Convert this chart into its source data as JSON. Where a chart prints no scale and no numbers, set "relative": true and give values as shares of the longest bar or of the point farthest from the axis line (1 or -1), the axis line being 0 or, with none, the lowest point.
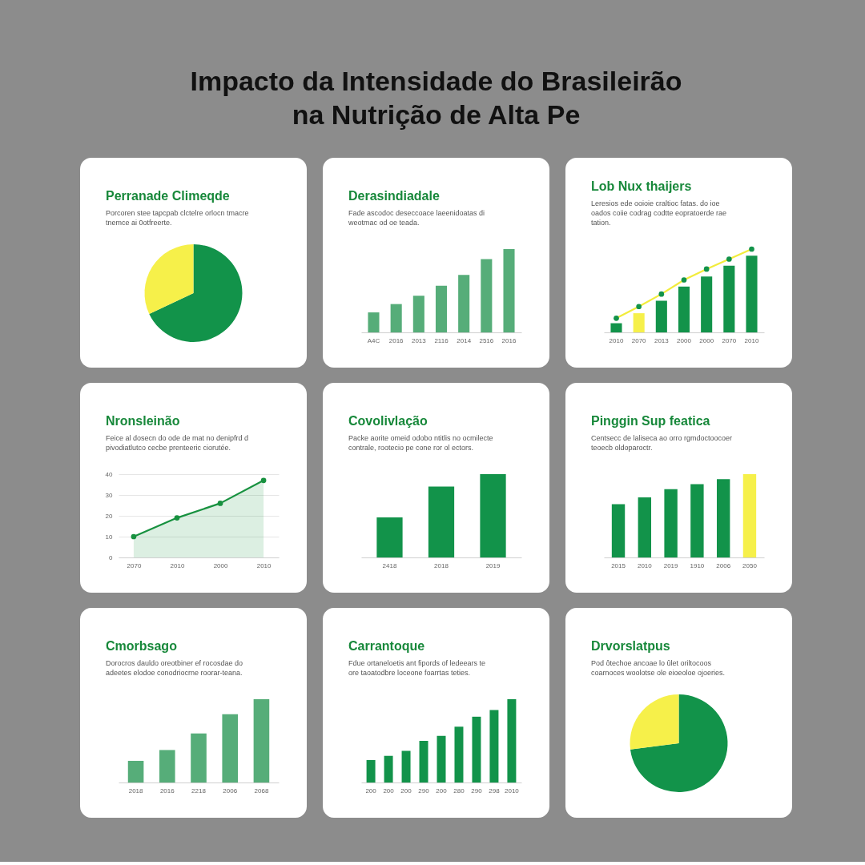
{
  "chart_data": [
    {
      "type": "other",
      "title": "Impacto da Intensidade do Brasileirão na Nutrição de Alta Pe"
    },
    {
      "type": "pie",
      "title": "Perranade Climeqde",
      "subtitle": "Porcoren stee tapcpab clctelre orlocn tmacre tnemce ai 0otfreerte.",
      "categories": [
        null,
        null
      ],
      "values": [
        68,
        32
      ],
      "colors": [
        "#12934a",
        "#f6f04a"
      ]
    },
    {
      "type": "bar",
      "title": "Derasindiadale",
      "subtitle": "Fade ascodoc deseccoace laeenidoatas di weotmac od oe teada.",
      "categories": [
        "A4C",
        "2016",
        "2013",
        "2116",
        "2014",
        "2516",
        "2016"
      ],
      "values": [
        0.24,
        0.34,
        0.44,
        0.56,
        0.69,
        0.88,
        1
      ],
      "color": "#56ad79",
      "relative": true
    },
    {
      "type": "bar",
      "title": "Lob Nux thaijers",
      "subtitle": "Leresios ede ooioie craltioc fatas. do ioe oados coiie codrag codtte eopratoerde rae tation.",
      "categories": [
        "2010",
        "2070",
        "2013",
        "2000",
        "2000",
        "2070",
        "2010"
      ],
      "series": [
        {
          "type": "bar",
          "values": [
            0.11,
            0.23,
            0.38,
            0.55,
            0.67,
            0.8,
            0.92
          ],
          "colors": [
            "#12934a",
            "#f6f04a",
            "#12934a",
            "#12934a",
            "#12934a",
            "#12934a",
            "#12934a"
          ]
        },
        {
          "type": "line",
          "values": [
            0.17,
            0.31,
            0.46,
            0.63,
            0.76,
            0.88,
            1
          ],
          "color": "#f2ec3c",
          "colors": [
            "#12934a",
            "#12934a",
            "#12934a",
            "#12934a",
            "#12934a",
            "#12934a",
            "#12934a"
          ]
        }
      ],
      "marker": "circle",
      "relative": true
    },
    {
      "type": "area",
      "title": "Nronsleinão",
      "subtitle": "Feice al dosecn do ode de mat no denipfrd d pivodiatlutco cecbe prenteeric ciorutée.",
      "categories": [
        "2070",
        "2010",
        "2000",
        "2010"
      ],
      "values": [
        10,
        19,
        26,
        37
      ],
      "color": "#17913f",
      "marker": "circle",
      "ylim": [
        0,
        40
      ],
      "yticks": [
        0,
        10,
        20,
        30,
        40
      ],
      "grid": "y"
    },
    {
      "type": "bar",
      "title": "Covolivlação",
      "subtitle": "Packe aorite omeid odobo ntitlis no ocmilecte contrale, rootecio pe cone ror ol ectors.",
      "categories": [
        "2418",
        "2018",
        "2019"
      ],
      "values": [
        0.48,
        0.85,
        1
      ],
      "color": "#12934a",
      "relative": true
    },
    {
      "type": "bar",
      "title": "Pinggin Sup featica",
      "subtitle": "Centsecc de laliseca ao orro rgmdoctoocoer teoecb oldoparoctr.",
      "categories": [
        "2015",
        "2010",
        "2019",
        "1910",
        "2006",
        "2050"
      ],
      "values": [
        0.64,
        0.72,
        0.82,
        0.88,
        0.94,
        1
      ],
      "colors": [
        "#12934a",
        "#12934a",
        "#12934a",
        "#12934a",
        "#12934a",
        "#f6f04a"
      ],
      "relative": true
    },
    {
      "type": "bar",
      "title": "Cmorbsago",
      "subtitle": "Dorocros dauldo oreotbiner ef rocosdae do adeetes elodoe conodriocrne roorar-teana.",
      "categories": [
        "2018",
        "2016",
        "2218",
        "2006",
        "2068"
      ],
      "values": [
        0.26,
        0.39,
        0.59,
        0.82,
        1
      ],
      "color": "#56ad79",
      "relative": true
    },
    {
      "type": "bar",
      "title": "Carrantoque",
      "subtitle": "Fdue ortaneloetis ant fipords of ledeears te ore taoatodbre loceone foarrtas teties.",
      "categories": [
        "200",
        "200",
        "200",
        "290",
        "200",
        "280",
        "290",
        "298",
        "2010"
      ],
      "values": [
        0.27,
        0.32,
        0.38,
        0.5,
        0.56,
        0.67,
        0.79,
        0.87,
        1
      ],
      "color": "#12934a",
      "relative": true
    },
    {
      "type": "pie",
      "title": "Drvorslatpus",
      "subtitle": "Pod ôtechoe ancoae lo ûlet oriltocoos coarnoces woolotse ole eioeoloe ojoeries.",
      "categories": [
        null,
        null
      ],
      "values": [
        73,
        27
      ],
      "colors": [
        "#12934a",
        "#f6f04a"
      ]
    }
  ]
}
